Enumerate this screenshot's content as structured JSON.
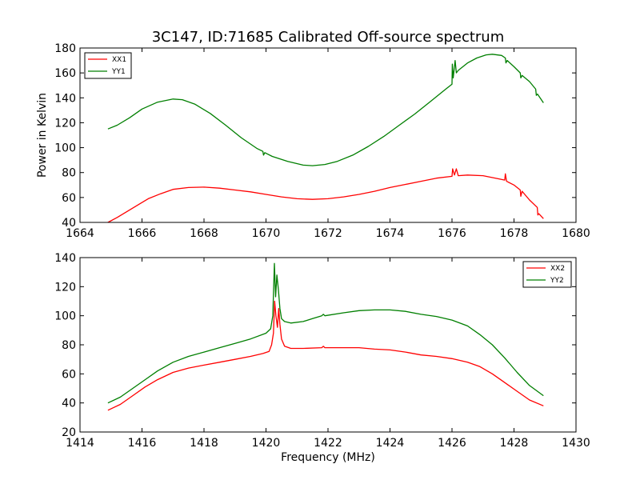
{
  "chart_data": [
    {
      "type": "line",
      "title": "3C147, ID:71685 Calibrated Off-source spectrum",
      "xlabel": "",
      "ylabel": "Power in Kelvin",
      "xlim": [
        1664,
        1680
      ],
      "ylim": [
        40,
        180
      ],
      "xticks": [
        1664,
        1666,
        1668,
        1670,
        1672,
        1674,
        1676,
        1678,
        1680
      ],
      "yticks": [
        40,
        60,
        80,
        100,
        120,
        140,
        160,
        180
      ],
      "grid": false,
      "legend": "top-left",
      "series": [
        {
          "name": "XX1",
          "color": "#ff0000",
          "points": [
            [
              1664.9,
              40
            ],
            [
              1665.2,
              44
            ],
            [
              1665.8,
              53
            ],
            [
              1666.2,
              59
            ],
            [
              1666.6,
              63
            ],
            [
              1667.0,
              66.5
            ],
            [
              1667.5,
              68
            ],
            [
              1668.0,
              68.3
            ],
            [
              1668.5,
              67.5
            ],
            [
              1669.0,
              66
            ],
            [
              1669.5,
              64.5
            ],
            [
              1670.0,
              62.5
            ],
            [
              1670.5,
              60.5
            ],
            [
              1671.0,
              59
            ],
            [
              1671.5,
              58.5
            ],
            [
              1672.0,
              59
            ],
            [
              1672.5,
              60.5
            ],
            [
              1673.0,
              62.5
            ],
            [
              1673.5,
              65
            ],
            [
              1674.0,
              68
            ],
            [
              1674.5,
              70.5
            ],
            [
              1675.0,
              73
            ],
            [
              1675.5,
              75.5
            ],
            [
              1676.0,
              77
            ],
            [
              1676.02,
              83
            ],
            [
              1676.08,
              78
            ],
            [
              1676.14,
              83
            ],
            [
              1676.2,
              77.5
            ],
            [
              1676.5,
              78
            ],
            [
              1677.0,
              77.5
            ],
            [
              1677.5,
              75
            ],
            [
              1677.7,
              74
            ],
            [
              1677.72,
              79
            ],
            [
              1677.76,
              73
            ],
            [
              1678.0,
              70
            ],
            [
              1678.2,
              66
            ],
            [
              1678.22,
              61
            ],
            [
              1678.26,
              65
            ],
            [
              1678.5,
              58
            ],
            [
              1678.75,
              52
            ],
            [
              1678.77,
              46
            ],
            [
              1678.8,
              47
            ],
            [
              1678.95,
              43
            ]
          ]
        },
        {
          "name": "YY1",
          "color": "#007f00",
          "points": [
            [
              1664.9,
              115
            ],
            [
              1665.2,
              118
            ],
            [
              1665.6,
              124
            ],
            [
              1666.0,
              131
            ],
            [
              1666.5,
              136.5
            ],
            [
              1667.0,
              139
            ],
            [
              1667.3,
              138.5
            ],
            [
              1667.7,
              135
            ],
            [
              1668.2,
              127.5
            ],
            [
              1668.7,
              118
            ],
            [
              1669.2,
              108
            ],
            [
              1669.7,
              99.5
            ],
            [
              1669.9,
              97
            ],
            [
              1669.92,
              94
            ],
            [
              1669.96,
              96
            ],
            [
              1670.2,
              93
            ],
            [
              1670.7,
              89
            ],
            [
              1671.2,
              86
            ],
            [
              1671.5,
              85.5
            ],
            [
              1671.9,
              86.5
            ],
            [
              1672.3,
              89
            ],
            [
              1672.8,
              94
            ],
            [
              1673.3,
              101
            ],
            [
              1673.8,
              109
            ],
            [
              1674.3,
              118
            ],
            [
              1674.8,
              127
            ],
            [
              1675.3,
              137
            ],
            [
              1675.8,
              147
            ],
            [
              1676.0,
              151
            ],
            [
              1676.01,
              167
            ],
            [
              1676.04,
              156
            ],
            [
              1676.1,
              170
            ],
            [
              1676.14,
              160
            ],
            [
              1676.2,
              162
            ],
            [
              1676.5,
              168
            ],
            [
              1676.8,
              172
            ],
            [
              1677.1,
              174.5
            ],
            [
              1677.3,
              175
            ],
            [
              1677.6,
              174
            ],
            [
              1677.72,
              172
            ],
            [
              1677.74,
              168
            ],
            [
              1677.78,
              170
            ],
            [
              1678.0,
              165
            ],
            [
              1678.2,
              160
            ],
            [
              1678.22,
              156
            ],
            [
              1678.26,
              158
            ],
            [
              1678.5,
              153
            ],
            [
              1678.7,
              147
            ],
            [
              1678.72,
              142
            ],
            [
              1678.76,
              143
            ],
            [
              1678.95,
              136
            ]
          ]
        }
      ]
    },
    {
      "type": "line",
      "title": "",
      "xlabel": "Frequency (MHz)",
      "ylabel": "",
      "xlim": [
        1414,
        1430
      ],
      "ylim": [
        20,
        140
      ],
      "xticks": [
        1414,
        1416,
        1418,
        1420,
        1422,
        1424,
        1426,
        1428,
        1430
      ],
      "yticks": [
        20,
        40,
        60,
        80,
        100,
        120,
        140
      ],
      "grid": false,
      "legend": "top-right",
      "series": [
        {
          "name": "XX2",
          "color": "#ff0000",
          "points": [
            [
              1414.9,
              35
            ],
            [
              1415.3,
              39
            ],
            [
              1415.7,
              45
            ],
            [
              1416.1,
              51
            ],
            [
              1416.5,
              56
            ],
            [
              1417.0,
              61
            ],
            [
              1417.5,
              64
            ],
            [
              1418.0,
              66
            ],
            [
              1418.5,
              68
            ],
            [
              1419.0,
              70
            ],
            [
              1419.5,
              72
            ],
            [
              1419.9,
              74
            ],
            [
              1420.1,
              75.5
            ],
            [
              1420.18,
              80
            ],
            [
              1420.24,
              88
            ],
            [
              1420.28,
              110
            ],
            [
              1420.32,
              100
            ],
            [
              1420.37,
              92
            ],
            [
              1420.41,
              105
            ],
            [
              1420.45,
              94
            ],
            [
              1420.5,
              84
            ],
            [
              1420.6,
              79
            ],
            [
              1420.8,
              77.5
            ],
            [
              1421.2,
              77.5
            ],
            [
              1421.8,
              78
            ],
            [
              1421.85,
              79
            ],
            [
              1421.9,
              78
            ],
            [
              1422.5,
              78
            ],
            [
              1423.0,
              78
            ],
            [
              1423.5,
              77
            ],
            [
              1424.0,
              76.5
            ],
            [
              1424.5,
              75
            ],
            [
              1425.0,
              73
            ],
            [
              1425.5,
              72
            ],
            [
              1426.0,
              70.5
            ],
            [
              1426.5,
              68
            ],
            [
              1426.9,
              65
            ],
            [
              1427.3,
              60
            ],
            [
              1427.7,
              54
            ],
            [
              1428.1,
              48
            ],
            [
              1428.5,
              42
            ],
            [
              1428.95,
              38
            ]
          ]
        },
        {
          "name": "YY2",
          "color": "#007f00",
          "points": [
            [
              1414.9,
              40
            ],
            [
              1415.3,
              44
            ],
            [
              1415.7,
              50
            ],
            [
              1416.1,
              56
            ],
            [
              1416.5,
              62
            ],
            [
              1417.0,
              68
            ],
            [
              1417.5,
              72
            ],
            [
              1418.0,
              75
            ],
            [
              1418.5,
              78
            ],
            [
              1419.0,
              81
            ],
            [
              1419.5,
              84
            ],
            [
              1420.0,
              88
            ],
            [
              1420.15,
              91
            ],
            [
              1420.22,
              100
            ],
            [
              1420.27,
              136
            ],
            [
              1420.31,
              113
            ],
            [
              1420.35,
              128
            ],
            [
              1420.4,
              118
            ],
            [
              1420.45,
              105
            ],
            [
              1420.5,
              98
            ],
            [
              1420.6,
              96
            ],
            [
              1420.8,
              95
            ],
            [
              1421.2,
              96
            ],
            [
              1421.5,
              98
            ],
            [
              1421.8,
              100
            ],
            [
              1421.85,
              101
            ],
            [
              1421.9,
              100
            ],
            [
              1422.5,
              102
            ],
            [
              1423.0,
              103.5
            ],
            [
              1423.5,
              104
            ],
            [
              1424.0,
              104
            ],
            [
              1424.5,
              103
            ],
            [
              1425.0,
              101
            ],
            [
              1425.5,
              99.5
            ],
            [
              1426.0,
              97
            ],
            [
              1426.5,
              93
            ],
            [
              1426.9,
              87
            ],
            [
              1427.3,
              80
            ],
            [
              1427.7,
              71
            ],
            [
              1428.1,
              61
            ],
            [
              1428.5,
              52
            ],
            [
              1428.95,
              45
            ]
          ]
        }
      ]
    }
  ]
}
